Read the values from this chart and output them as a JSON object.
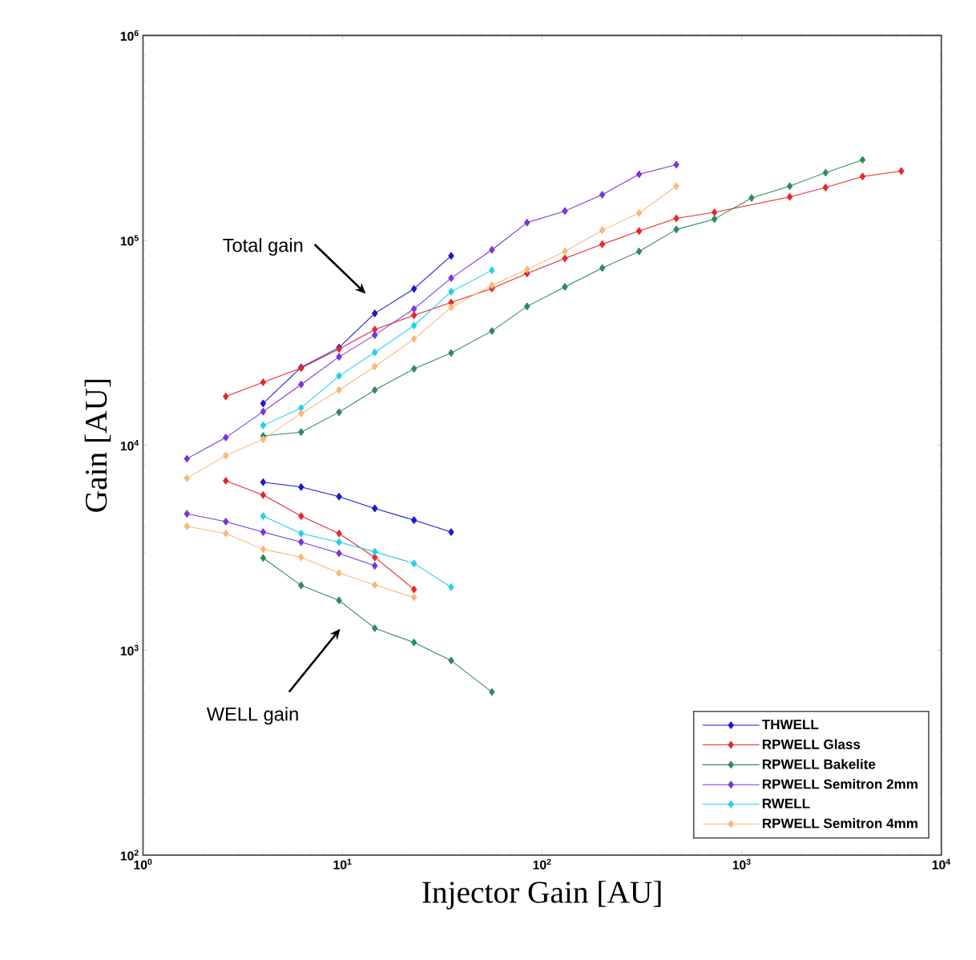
{
  "chart_data": {
    "type": "line",
    "xlabel": "Injector Gain [AU]",
    "ylabel": "Gain [AU]",
    "log": "xy",
    "marker": "diamond",
    "line_style": "solid",
    "legend": "bottom right",
    "xlim": [
      1,
      10000
    ],
    "ylim": [
      100,
      1000000
    ],
    "xticks": [
      {
        "value": 1,
        "label": "10$^{0}$"
      },
      {
        "value": 10,
        "label": "10$^{1}$"
      },
      {
        "value": 100,
        "label": "10$^{2}$"
      },
      {
        "value": 1000,
        "label": "10$^{3}$"
      },
      {
        "value": 10000,
        "label": "10$^{4}$"
      }
    ],
    "yticks": [
      {
        "value": 100,
        "label": "10$^{2}$"
      },
      {
        "value": 1000,
        "label": "10$^{3}$"
      },
      {
        "value": 10000,
        "label": "10$^{4}$"
      },
      {
        "value": 100000,
        "label": "10$^{5}$"
      },
      {
        "value": 1000000,
        "label": "10$^{6}$"
      }
    ],
    "annotations": [
      "Total gain",
      "WELL gain"
    ],
    "series": [
      {
        "name": "THWELL",
        "color": "#1a1ad0",
        "x": [
          4.0,
          6.2,
          9.6,
          14.5,
          22.8,
          35
        ],
        "values": [
          16000,
          24000,
          30000,
          44000,
          58000,
          84000
        ]
      },
      {
        "name": "RPWELL Glass",
        "color": "#e8282a",
        "x": [
          2.6,
          4.0,
          6.2,
          9.6,
          14.5,
          22.8,
          35,
          56,
          84,
          130,
          200,
          306,
          470,
          730,
          1740,
          2630,
          4030,
          6300
        ],
        "values": [
          17300,
          20300,
          23800,
          29500,
          36700,
          43100,
          49700,
          58200,
          68900,
          81600,
          95700,
          111000,
          128000,
          137000,
          163000,
          181000,
          205000,
          218000
        ]
      },
      {
        "name": "RPWELL Bakelite",
        "color": "#2e8b5a",
        "x": [
          4.0,
          6.2,
          9.6,
          14.5,
          22.8,
          35,
          56,
          84,
          130,
          200,
          306,
          470,
          730,
          1120,
          1740,
          2630,
          4030
        ],
        "values": [
          11100,
          11600,
          14500,
          18600,
          23600,
          28200,
          36100,
          47600,
          59300,
          73300,
          88300,
          113000,
          127000,
          161000,
          184000,
          214000,
          247000
        ]
      },
      {
        "name": "RPWELL Semitron 2mm",
        "color": "#7a35d5",
        "x": [
          1.66,
          2.6,
          4.0,
          6.2,
          9.6,
          14.5,
          22.8,
          35,
          56,
          84,
          130,
          200,
          306,
          470
        ],
        "values": [
          8600,
          10900,
          14600,
          19800,
          27000,
          34500,
          46300,
          65400,
          89900,
          122000,
          139000,
          167000,
          210000,
          234000
        ]
      },
      {
        "name": "RWELL",
        "color": "#22d0e8",
        "x": [
          4.0,
          6.2,
          9.6,
          14.5,
          22.8,
          35,
          56
        ],
        "values": [
          12500,
          15200,
          21800,
          28400,
          38400,
          56200,
          71400
        ]
      },
      {
        "name": "RPWELL Semitron 4mm",
        "color": "#f8b878",
        "x": [
          1.66,
          2.6,
          4.0,
          6.2,
          9.6,
          14.5,
          22.8,
          35,
          56,
          84,
          130,
          200,
          306,
          470
        ],
        "values": [
          6900,
          8900,
          10700,
          14300,
          18600,
          24200,
          33000,
          47100,
          60400,
          72100,
          88300,
          112000,
          136000,
          184000
        ]
      },
      {
        "color": "#1a1ad0",
        "x": [
          4.0,
          6.2,
          9.6,
          14.5,
          22.8,
          35
        ],
        "values": [
          6600,
          6250,
          5620,
          4920,
          4310,
          3770
        ]
      },
      {
        "color": "#e8282a",
        "x": [
          2.6,
          4.0,
          6.2,
          9.6,
          14.5,
          22.8
        ],
        "values": [
          6710,
          5720,
          4510,
          3710,
          2840,
          1980
        ]
      },
      {
        "color": "#2e8b5a",
        "x": [
          4.0,
          6.2,
          9.6,
          14.5,
          22.8,
          35,
          56
        ],
        "values": [
          2820,
          2070,
          1750,
          1280,
          1090,
          890,
          625
        ]
      },
      {
        "color": "#7a35d5",
        "x": [
          1.66,
          2.6,
          4.0,
          6.2,
          9.6,
          14.5
        ],
        "values": [
          4630,
          4240,
          3770,
          3370,
          2970,
          2580
        ]
      },
      {
        "color": "#22d0e8",
        "x": [
          4.0,
          6.2,
          9.6,
          14.5,
          22.8,
          35
        ],
        "values": [
          4510,
          3710,
          3370,
          3020,
          2650,
          2030
        ]
      },
      {
        "color": "#f8b878",
        "x": [
          1.66,
          2.6,
          4.0,
          6.2,
          9.6,
          14.5,
          22.8
        ],
        "values": [
          4020,
          3710,
          3110,
          2840,
          2380,
          2080,
          1810
        ]
      }
    ]
  }
}
